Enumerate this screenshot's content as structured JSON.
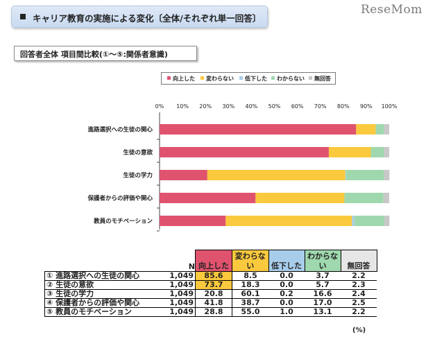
{
  "banner": {
    "title": "キャリア教育の実施による変化〔全体/それぞれ単一回答〕"
  },
  "logo": "ReseMom",
  "subtitle": "回答者全体 項目間比較(①～⑤:関係者意識)",
  "colors": {
    "up": "#e0536e",
    "same": "#fbc93d",
    "down": "#a8cdea",
    "unknown": "#9fd8ae",
    "noanswer": "#c8c8c8",
    "banner_bg": "#cfdef3"
  },
  "chart_data": {
    "type": "bar",
    "orientation": "horizontal",
    "stacked": true,
    "percent_axis": true,
    "xlim": [
      0,
      100
    ],
    "x_ticks": [
      "0%",
      "10%",
      "20%",
      "30%",
      "40%",
      "50%",
      "60%",
      "70%",
      "80%",
      "90%",
      "100%"
    ],
    "categories": [
      "進路選択への生徒の関心",
      "生徒の意欲",
      "生徒の学力",
      "保護者からの評価や関心",
      "教員のモチベーション"
    ],
    "series": [
      {
        "name": "向上した",
        "values": [
          85.6,
          73.7,
          20.8,
          41.8,
          28.8
        ]
      },
      {
        "name": "変わらない",
        "values": [
          8.5,
          18.3,
          60.1,
          38.7,
          55.0
        ]
      },
      {
        "name": "低下した",
        "values": [
          0.0,
          0.0,
          0.2,
          0.0,
          1.0
        ]
      },
      {
        "name": "わからない",
        "values": [
          3.7,
          5.7,
          16.6,
          17.0,
          13.1
        ]
      },
      {
        "name": "無回答",
        "values": [
          2.2,
          2.3,
          2.4,
          2.5,
          2.2
        ]
      }
    ],
    "legend_position": "top",
    "grid": false
  },
  "table": {
    "headers": [
      "N",
      "向上した",
      "変わらない",
      "低下した",
      "わからない",
      "無回答"
    ],
    "rows": [
      {
        "no": "①",
        "label": "進路選択への生徒の関心",
        "n": "1,049",
        "vals": [
          "85.6",
          "8.5",
          "0.0",
          "3.7",
          "2.2"
        ]
      },
      {
        "no": "②",
        "label": "生徒の意欲",
        "n": "1,049",
        "vals": [
          "73.7",
          "18.3",
          "0.0",
          "5.7",
          "2.3"
        ]
      },
      {
        "no": "③",
        "label": "生徒の学力",
        "n": "1,049",
        "vals": [
          "20.8",
          "60.1",
          "0.2",
          "16.6",
          "2.4"
        ]
      },
      {
        "no": "④",
        "label": "保護者からの評価や関心",
        "n": "1,049",
        "vals": [
          "41.8",
          "38.7",
          "0.0",
          "17.0",
          "2.5"
        ]
      },
      {
        "no": "⑤",
        "label": "教員のモチベーション",
        "n": "1,049",
        "vals": [
          "28.8",
          "55.0",
          "1.0",
          "13.1",
          "2.2"
        ]
      }
    ],
    "unit": "(%)"
  }
}
